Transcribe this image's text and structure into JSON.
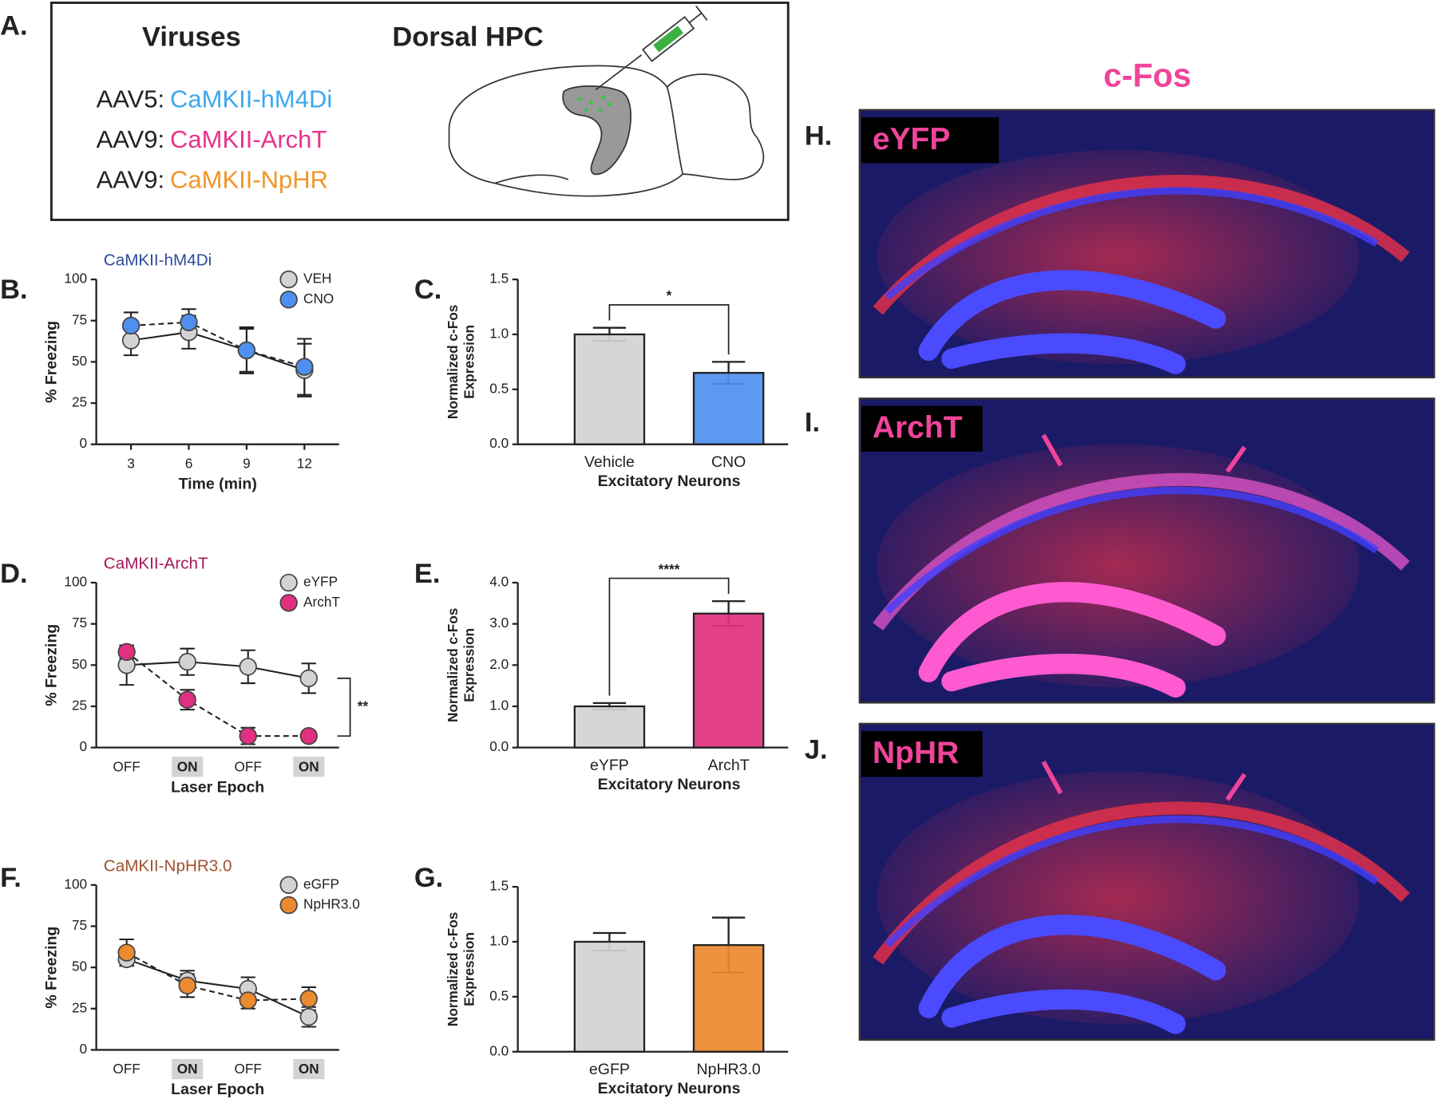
{
  "panel_labels": [
    "A.",
    "B.",
    "C.",
    "D.",
    "E.",
    "F.",
    "G.",
    "H.",
    "I.",
    "J."
  ],
  "diagram": {
    "headings": [
      "Viruses",
      "Dorsal HPC"
    ],
    "viruses": [
      {
        "serotype": "AAV5:",
        "construct": "CaMKII-hM4Di",
        "color": "#3ea7ee"
      },
      {
        "serotype": "AAV9:",
        "construct": "CaMKII-ArchT",
        "color": "#e8338a"
      },
      {
        "serotype": "AAV9:",
        "construct": "CaMKII-NpHR",
        "color": "#f0962a"
      }
    ]
  },
  "images": {
    "title": "c-Fos",
    "panels": [
      {
        "label": "eYFP"
      },
      {
        "label": "ArchT"
      },
      {
        "label": "NpHR"
      }
    ]
  },
  "chart_data": [
    {
      "type": "line",
      "title": "CaMKII-hM4Di",
      "title_color": "#2b4c9b",
      "x": [
        3,
        6,
        9,
        12
      ],
      "xlim": [
        1.2,
        13.8
      ],
      "xticks": [
        3,
        6,
        9,
        12
      ],
      "ylim": [
        0,
        100
      ],
      "yticks": [
        0,
        25,
        50,
        75,
        100
      ],
      "xlabel": "Time (min)",
      "ylabel": "% Freezing",
      "series": [
        {
          "name": "VEH",
          "color": "#d3d3d3",
          "line_style": "solid",
          "values": [
            63,
            68,
            57,
            45
          ],
          "errors": [
            9,
            10,
            13,
            16
          ]
        },
        {
          "name": "CNO",
          "color": "#4f8ff0",
          "line_style": "dashed",
          "values": [
            72,
            74,
            57,
            47
          ],
          "errors": [
            8,
            8,
            14,
            17
          ]
        }
      ]
    },
    {
      "type": "bar",
      "categories": [
        "Vehicle",
        "CNO"
      ],
      "values": [
        1,
        0.65
      ],
      "errors": [
        0.06,
        0.1
      ],
      "colors": [
        "#d3d3d3",
        "#4f8ff0"
      ],
      "ylim": [
        0,
        1.5
      ],
      "yticks": [
        {
          "value": 0,
          "label": "0.0"
        },
        0.5,
        {
          "value": 1,
          "label": "1.0"
        },
        1.5
      ],
      "ylabel": [
        "Normalized c-Fos",
        "Expression"
      ],
      "xlabel": "Excitatory Neurons",
      "annotation": "*"
    },
    {
      "type": "line",
      "title": "CaMKII-ArchT",
      "title_color": "#a3185a",
      "categories": [
        "OFF",
        "ON",
        "OFF",
        "ON"
      ],
      "highlighted_categories": [
        1,
        3
      ],
      "ylim": [
        0,
        100
      ],
      "yticks": [
        0,
        25,
        50,
        75,
        100
      ],
      "xlabel": "Laser Epoch",
      "ylabel": "% Freezing",
      "annotation": "**",
      "series": [
        {
          "name": "eYFP",
          "color": "#d3d3d3",
          "line_style": "solid",
          "values": [
            50,
            52,
            49,
            42
          ],
          "errors": [
            12,
            8,
            10,
            9
          ]
        },
        {
          "name": "ArchT",
          "color": "#e0307f",
          "line_style": "dashed",
          "values": [
            58,
            29,
            7,
            7
          ],
          "errors": [
            4,
            6,
            5,
            3
          ]
        }
      ]
    },
    {
      "type": "bar",
      "categories": [
        "eYFP",
        "ArchT"
      ],
      "values": [
        1,
        3.25
      ],
      "errors": [
        0.08,
        0.3
      ],
      "colors": [
        "#d3d3d3",
        "#e0307f"
      ],
      "ylim": [
        0,
        4
      ],
      "yticks": [
        {
          "value": 0,
          "label": "0.0"
        },
        {
          "value": 1,
          "label": "1.0"
        },
        {
          "value": 2,
          "label": "2.0"
        },
        {
          "value": 3,
          "label": "3.0"
        },
        {
          "value": 4,
          "label": "4.0"
        }
      ],
      "ylabel": [
        "Normalized c-Fos",
        "Expression"
      ],
      "xlabel": "Excitatory Neurons",
      "annotation": "****"
    },
    {
      "type": "line",
      "title": "CaMKII-NpHR3.0",
      "title_color": "#a0522d",
      "categories": [
        "OFF",
        "ON",
        "OFF",
        "ON"
      ],
      "highlighted_categories": [
        1,
        3
      ],
      "ylim": [
        0,
        100
      ],
      "yticks": [
        0,
        25,
        50,
        75,
        100
      ],
      "xlabel": "Laser Epoch",
      "ylabel": "% Freezing",
      "series": [
        {
          "name": "eGFP",
          "color": "#d3d3d3",
          "line_style": "solid",
          "values": [
            55,
            42,
            37,
            20
          ],
          "errors": [
            4,
            6,
            7,
            6
          ]
        },
        {
          "name": "NpHR3.0",
          "color": "#ec8a2f",
          "line_style": "dashed",
          "values": [
            59,
            39,
            30,
            31
          ],
          "errors": [
            8,
            7,
            5,
            7
          ]
        }
      ]
    },
    {
      "type": "bar",
      "categories": [
        "eGFP",
        "NpHR3.0"
      ],
      "values": [
        1,
        0.97
      ],
      "errors": [
        0.08,
        0.25
      ],
      "colors": [
        "#d3d3d3",
        "#ec8a2f"
      ],
      "ylim": [
        0,
        1.5
      ],
      "yticks": [
        {
          "value": 0,
          "label": "0.0"
        },
        0.5,
        {
          "value": 1,
          "label": "1.0"
        },
        1.5
      ],
      "ylabel": [
        "Normalized c-Fos",
        "Expression"
      ],
      "xlabel": "Excitatory Neurons"
    }
  ]
}
